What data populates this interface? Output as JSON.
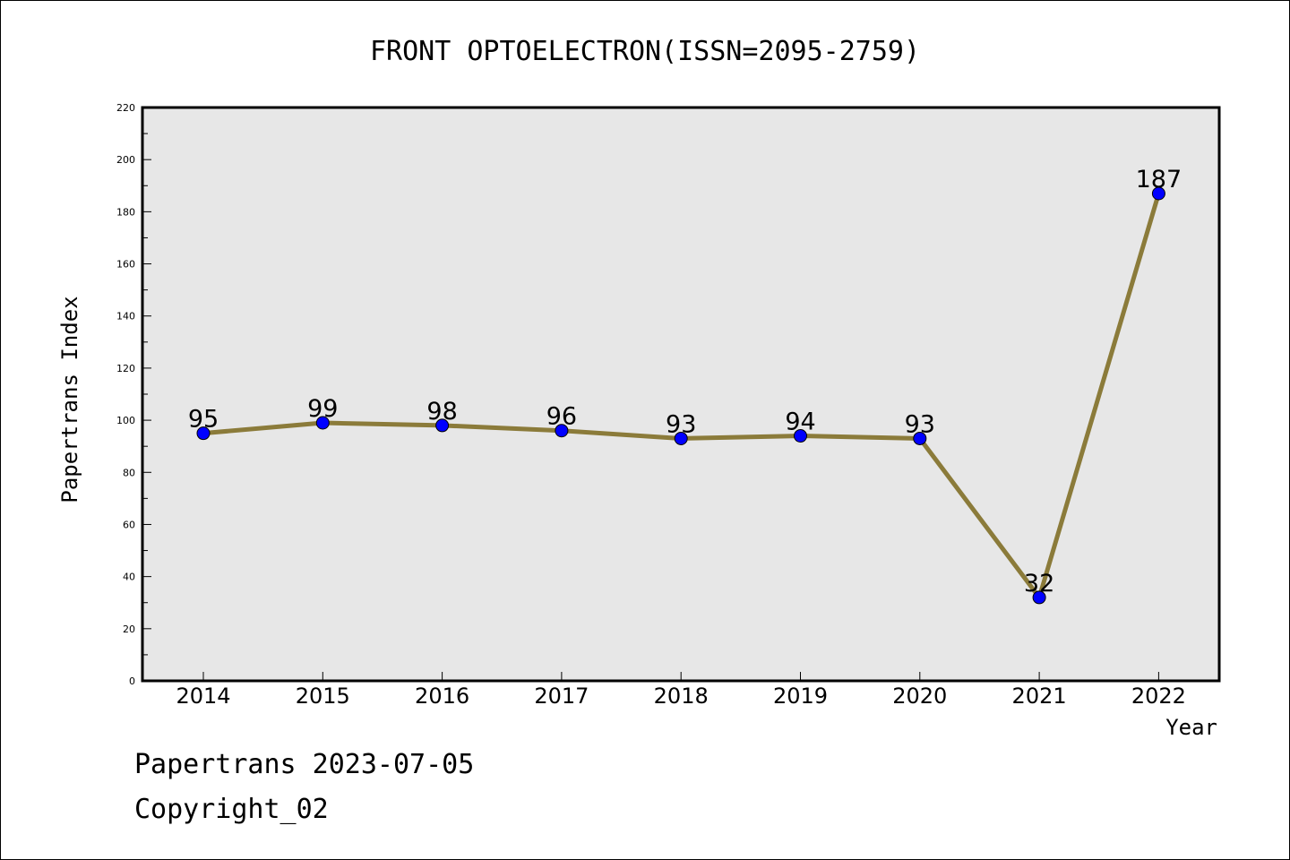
{
  "chart_data": {
    "type": "line",
    "title": "FRONT OPTOELECTRON(ISSN=2095-2759)",
    "xlabel": "Year",
    "ylabel": "Papertrans Index",
    "categories": [
      "2014",
      "2015",
      "2016",
      "2017",
      "2018",
      "2019",
      "2020",
      "2021",
      "2022"
    ],
    "series": [
      {
        "values": [
          95,
          99,
          98,
          96,
          93,
          94,
          93,
          32,
          187
        ]
      }
    ],
    "ylim": [
      0,
      220
    ],
    "yticks": [
      0,
      20,
      40,
      60,
      80,
      100,
      120,
      140,
      160,
      180,
      200,
      220
    ],
    "grid": false,
    "colors": {
      "line": "#8b7b3a",
      "marker": "#0000ff",
      "plot_bg": "#e7e7e7"
    }
  },
  "footer": {
    "source": "Papertrans 2023-07-05",
    "copyright": "Copyright_02"
  }
}
